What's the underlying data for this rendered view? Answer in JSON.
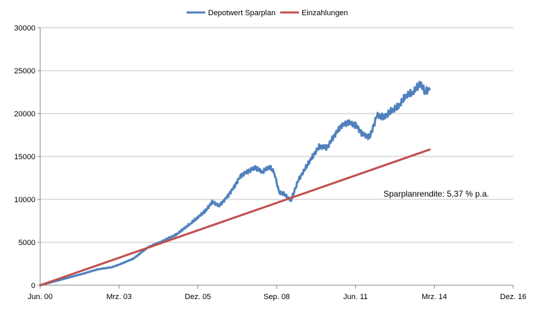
{
  "chart_data": {
    "type": "line",
    "title": "",
    "xlabel": "",
    "ylabel": "",
    "x_ticks": [
      "Jun. 00",
      "Mrz. 03",
      "Dez. 05",
      "Sep. 08",
      "Jun. 11",
      "Mrz. 14",
      "Dez. 16"
    ],
    "y_ticks": [
      0,
      5000,
      10000,
      15000,
      20000,
      25000,
      30000
    ],
    "xlim": [
      "2000-06",
      "2016-12"
    ],
    "ylim": [
      0,
      30000
    ],
    "grid": "horizontal",
    "legend_position": "top-center",
    "annotation": "Sparplanrendite: 5,37 % p.a.",
    "colors": {
      "depotwert": "#4F81BD",
      "einzahlungen": "#C0504D",
      "grid": "#C0C0C0",
      "axis": "#868686"
    },
    "series": [
      {
        "name": "Depotwert Sparplan",
        "points": [
          [
            "2000-06",
            0
          ],
          [
            "2000-12",
            450
          ],
          [
            "2001-06",
            900
          ],
          [
            "2001-12",
            1350
          ],
          [
            "2002-06",
            1850
          ],
          [
            "2002-12",
            2100
          ],
          [
            "2003-03",
            2400
          ],
          [
            "2003-09",
            3100
          ],
          [
            "2004-03",
            4400
          ],
          [
            "2004-09",
            5100
          ],
          [
            "2005-03",
            5900
          ],
          [
            "2005-09",
            7200
          ],
          [
            "2006-03",
            8600
          ],
          [
            "2006-06",
            9700
          ],
          [
            "2006-09",
            9300
          ],
          [
            "2006-12",
            10200
          ],
          [
            "2007-03",
            11400
          ],
          [
            "2007-06",
            12800
          ],
          [
            "2007-09",
            13300
          ],
          [
            "2007-12",
            13700
          ],
          [
            "2008-03",
            13200
          ],
          [
            "2008-06",
            13800
          ],
          [
            "2008-08",
            13100
          ],
          [
            "2008-10",
            10800
          ],
          [
            "2008-12",
            10600
          ],
          [
            "2009-03",
            9900
          ],
          [
            "2009-06",
            12200
          ],
          [
            "2009-12",
            15000
          ],
          [
            "2010-03",
            16200
          ],
          [
            "2010-06",
            16000
          ],
          [
            "2010-09",
            17400
          ],
          [
            "2010-12",
            18600
          ],
          [
            "2011-03",
            19000
          ],
          [
            "2011-06",
            18700
          ],
          [
            "2011-09",
            17600
          ],
          [
            "2011-12",
            17300
          ],
          [
            "2012-03",
            19800
          ],
          [
            "2012-06",
            19600
          ],
          [
            "2012-09",
            20300
          ],
          [
            "2012-12",
            20800
          ],
          [
            "2013-03",
            22000
          ],
          [
            "2013-06",
            22400
          ],
          [
            "2013-09",
            23400
          ],
          [
            "2013-11",
            22600
          ],
          [
            "2014-01",
            22800
          ]
        ]
      },
      {
        "name": "Einzahlungen",
        "points": [
          [
            "2000-06",
            0
          ],
          [
            "2014-01",
            15800
          ]
        ]
      }
    ]
  }
}
